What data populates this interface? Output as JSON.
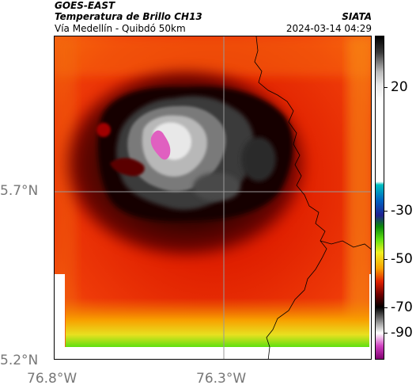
{
  "header": {
    "satellite": "GOES-EAST",
    "product": "Temperatura de Brillo CH13",
    "region": "Vía Medellín - Quibdó 50km",
    "org": "SIATA",
    "timestamp": "2024-03-14 04:29"
  },
  "axes": {
    "lat_labels": [
      "5.7°N",
      "5.2°N"
    ],
    "lon_labels": [
      "76.8°W",
      "76.3°W"
    ]
  },
  "colorbar": {
    "ticks": [
      "20",
      "-30",
      "-50",
      "-70",
      "-90"
    ],
    "stops": [
      {
        "t": 0.0,
        "c": "#000000"
      },
      {
        "t": 0.05,
        "c": "#3a3a3a"
      },
      {
        "t": 0.11,
        "c": "#bbbbbb"
      },
      {
        "t": 0.15,
        "c": "#e8e8e8"
      },
      {
        "t": 0.2,
        "c": "#ffffff"
      },
      {
        "t": 0.45,
        "c": "#ffffff"
      },
      {
        "t": 0.46,
        "c": "#00c0c0"
      },
      {
        "t": 0.51,
        "c": "#0060c0"
      },
      {
        "t": 0.555,
        "c": "#202090"
      },
      {
        "t": 0.59,
        "c": "#0a8a0a"
      },
      {
        "t": 0.63,
        "c": "#60e010"
      },
      {
        "t": 0.67,
        "c": "#f0f020"
      },
      {
        "t": 0.72,
        "c": "#f8a000"
      },
      {
        "t": 0.76,
        "c": "#e02000"
      },
      {
        "t": 0.8,
        "c": "#700000"
      },
      {
        "t": 0.84,
        "c": "#000000"
      },
      {
        "t": 0.885,
        "c": "#909090"
      },
      {
        "t": 0.92,
        "c": "#ffffff"
      },
      {
        "t": 0.96,
        "c": "#d040c0"
      },
      {
        "t": 1.0,
        "c": "#800070"
      }
    ]
  },
  "colors": {
    "warm_edge": "#f07010",
    "warm_bg": "#e02000",
    "dark_ring": "#700000",
    "cloud_core": "#202020",
    "cold_top": "#e060c0",
    "border_line": "#000000",
    "grid_line": "#999999"
  }
}
